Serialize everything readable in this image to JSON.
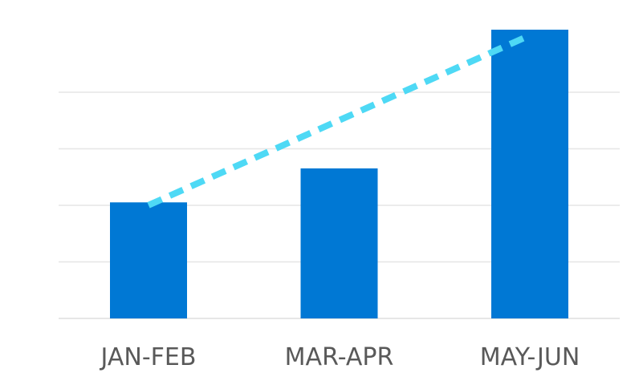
{
  "chart_data": {
    "type": "bar",
    "categories": [
      "JAN-FEB",
      "MAR-APR",
      "MAY-JUN"
    ],
    "values": [
      2.05,
      2.65,
      5.1
    ],
    "ylim": [
      0,
      5.5
    ],
    "grid": true,
    "bar_color": "#0078D4",
    "trendline": {
      "type": "linear",
      "style": "dashed",
      "color": "#4ED9F5",
      "values": [
        2.0,
        3.5,
        5.0
      ]
    },
    "gridline_color": "#E6E6E6",
    "label_color": "#595959"
  }
}
